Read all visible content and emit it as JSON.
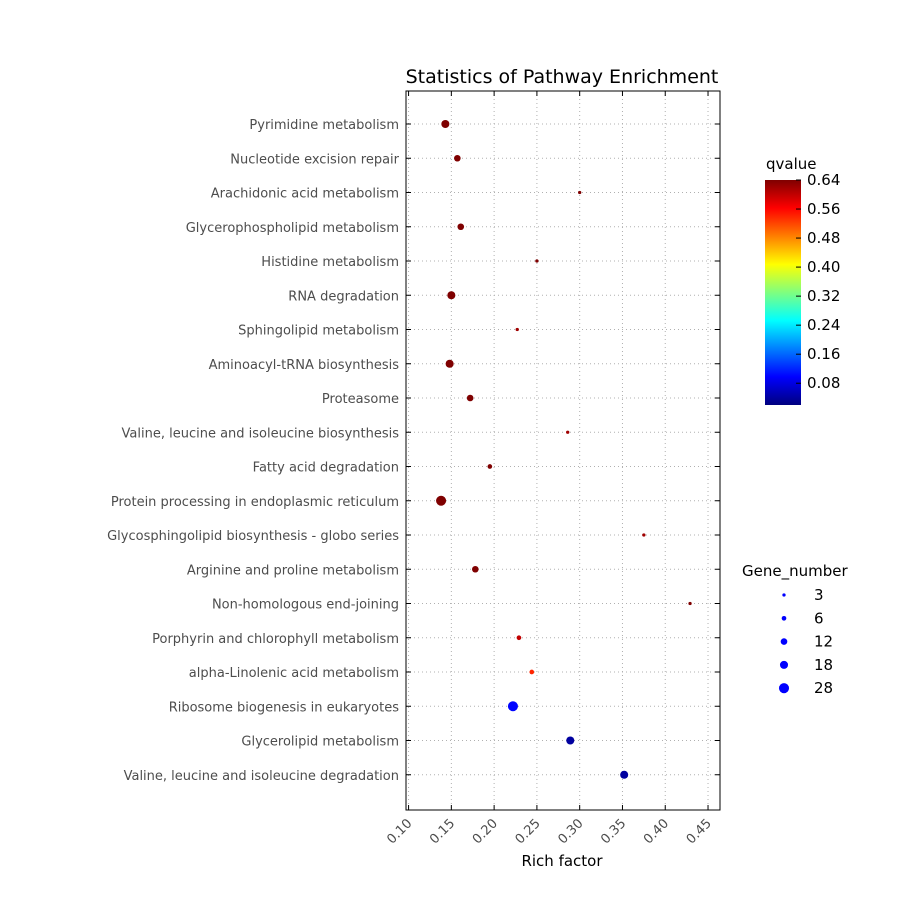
{
  "chart_data": {
    "type": "scatter",
    "title": "Statistics of Pathway Enrichment",
    "xlabel": "Rich factor",
    "ylabel": "",
    "xlim": [
      0.097,
      0.464
    ],
    "xticks": [
      "0.10",
      "0.15",
      "0.20",
      "0.25",
      "0.30",
      "0.35",
      "0.40",
      "0.45"
    ],
    "grid": true,
    "categories": [
      "Pyrimidine metabolism",
      "Nucleotide excision repair",
      "Arachidonic acid metabolism",
      "Glycerophospholipid metabolism",
      "Histidine metabolism",
      "RNA degradation",
      "Sphingolipid metabolism",
      "Aminoacyl-tRNA biosynthesis",
      "Proteasome",
      "Valine, leucine and isoleucine biosynthesis",
      "Fatty acid degradation",
      "Protein processing in endoplasmic reticulum",
      "Glycosphingolipid biosynthesis - globo series",
      "Arginine and proline metabolism",
      "Non-homologous end-joining",
      "Porphyrin and chlorophyll metabolism",
      "alpha-Linolenic acid metabolism",
      "Ribosome biogenesis in eukaryotes",
      "Glycerolipid metabolism",
      "Valine, leucine and isoleucine degradation"
    ],
    "points": [
      {
        "pathway": "Pyrimidine metabolism",
        "rich_factor": 0.143,
        "gene_number": 18,
        "qvalue": 0.64
      },
      {
        "pathway": "Nucleotide excision repair",
        "rich_factor": 0.157,
        "gene_number": 12,
        "qvalue": 0.64
      },
      {
        "pathway": "Arachidonic acid metabolism",
        "rich_factor": 0.3,
        "gene_number": 3,
        "qvalue": 0.64
      },
      {
        "pathway": "Glycerophospholipid metabolism",
        "rich_factor": 0.161,
        "gene_number": 12,
        "qvalue": 0.64
      },
      {
        "pathway": "Histidine metabolism",
        "rich_factor": 0.25,
        "gene_number": 3,
        "qvalue": 0.64
      },
      {
        "pathway": "RNA degradation",
        "rich_factor": 0.15,
        "gene_number": 18,
        "qvalue": 0.64
      },
      {
        "pathway": "Sphingolipid metabolism",
        "rich_factor": 0.227,
        "gene_number": 3,
        "qvalue": 0.62
      },
      {
        "pathway": "Aminoacyl-tRNA biosynthesis",
        "rich_factor": 0.148,
        "gene_number": 18,
        "qvalue": 0.64
      },
      {
        "pathway": "Proteasome",
        "rich_factor": 0.172,
        "gene_number": 12,
        "qvalue": 0.64
      },
      {
        "pathway": "Valine, leucine and isoleucine biosynthesis",
        "rich_factor": 0.286,
        "gene_number": 3,
        "qvalue": 0.62
      },
      {
        "pathway": "Fatty acid degradation",
        "rich_factor": 0.195,
        "gene_number": 6,
        "qvalue": 0.64
      },
      {
        "pathway": "Protein processing in endoplasmic reticulum",
        "rich_factor": 0.138,
        "gene_number": 28,
        "qvalue": 0.64
      },
      {
        "pathway": "Glycosphingolipid biosynthesis - globo series",
        "rich_factor": 0.375,
        "gene_number": 3,
        "qvalue": 0.62
      },
      {
        "pathway": "Arginine and proline metabolism",
        "rich_factor": 0.178,
        "gene_number": 12,
        "qvalue": 0.64
      },
      {
        "pathway": "Non-homologous end-joining",
        "rich_factor": 0.429,
        "gene_number": 3,
        "qvalue": 0.64
      },
      {
        "pathway": "Porphyrin and chlorophyll metabolism",
        "rich_factor": 0.229,
        "gene_number": 6,
        "qvalue": 0.6
      },
      {
        "pathway": "alpha-Linolenic acid metabolism",
        "rich_factor": 0.244,
        "gene_number": 6,
        "qvalue": 0.54
      },
      {
        "pathway": "Ribosome biogenesis in eukaryotes",
        "rich_factor": 0.222,
        "gene_number": 28,
        "qvalue": 0.1
      },
      {
        "pathway": "Glycerolipid metabolism",
        "rich_factor": 0.289,
        "gene_number": 18,
        "qvalue": 0.04
      },
      {
        "pathway": "Valine, leucine and isoleucine degradation",
        "rich_factor": 0.352,
        "gene_number": 18,
        "qvalue": 0.04
      }
    ],
    "colorbar": {
      "title": "qvalue",
      "min": 0.02,
      "max": 0.64,
      "ticks": [
        "0.64",
        "0.56",
        "0.48",
        "0.40",
        "0.32",
        "0.24",
        "0.16",
        "0.08"
      ],
      "colormap": [
        "#00007f",
        "#0000ff",
        "#007fff",
        "#00ffff",
        "#7fff7f",
        "#ffff00",
        "#ff7f00",
        "#ff0000",
        "#7f0000"
      ]
    },
    "size_legend": {
      "title": "Gene_number",
      "entries": [
        "3",
        "6",
        "12",
        "18",
        "28"
      ],
      "color": "#0000ff"
    }
  }
}
